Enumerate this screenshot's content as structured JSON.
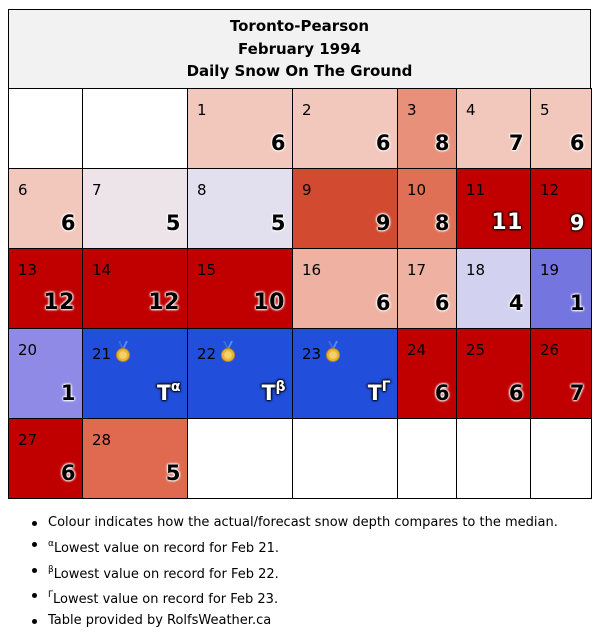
{
  "header": {
    "station": "Toronto-Pearson",
    "month": "February 1994",
    "subject": "Daily Snow On The Ground"
  },
  "legend_colors": {
    "much_above": "#c00000",
    "above": "#d24a30",
    "somewhat_above": "#e07055",
    "slightly_above": "#eaa288",
    "near_above": "#f2c8bc",
    "near_median": "#ece4e8",
    "slightly_below": "#e2e0ef",
    "below": "#d3d1f0",
    "more_below": "#8f8ae6",
    "much_below": "#7575e0",
    "record_low": "#214fdc"
  },
  "weeks": [
    [
      {
        "empty": true
      },
      {
        "empty": true
      },
      {
        "day": "1",
        "value": "6",
        "bg": "#f2c8bc"
      },
      {
        "day": "2",
        "value": "6",
        "bg": "#f2c8bc"
      },
      {
        "day": "3",
        "value": "8",
        "bg": "#e8907a"
      },
      {
        "day": "4",
        "value": "7",
        "bg": "#f2c8bc"
      },
      {
        "day": "5",
        "value": "6",
        "bg": "#f2c8bc"
      }
    ],
    [
      {
        "day": "6",
        "value": "6",
        "bg": "#f2c8bc"
      },
      {
        "day": "7",
        "value": "5",
        "bg": "#ece4e8"
      },
      {
        "day": "8",
        "value": "5",
        "bg": "#e2e0ef"
      },
      {
        "day": "9",
        "value": "9",
        "bg": "#d24a30"
      },
      {
        "day": "10",
        "value": "8",
        "bg": "#e07055"
      },
      {
        "day": "11",
        "value": "11",
        "bg": "#c00000",
        "dark": true
      },
      {
        "day": "12",
        "value": "9",
        "bg": "#c00000",
        "dark": true
      }
    ],
    [
      {
        "day": "13",
        "value": "12",
        "bg": "#c00000"
      },
      {
        "day": "14",
        "value": "12",
        "bg": "#c00000"
      },
      {
        "day": "15",
        "value": "10",
        "bg": "#c00000"
      },
      {
        "day": "16",
        "value": "6",
        "bg": "#efb2a2"
      },
      {
        "day": "17",
        "value": "6",
        "bg": "#efb2a2"
      },
      {
        "day": "18",
        "value": "4",
        "bg": "#d3d1f0"
      },
      {
        "day": "19",
        "value": "1",
        "bg": "#7575e0"
      }
    ],
    [
      {
        "day": "20",
        "value": "1",
        "bg": "#8f8ae6"
      },
      {
        "day": "21",
        "value": "T",
        "sup": "α",
        "bg": "#214fdc",
        "medal": true,
        "dark": true
      },
      {
        "day": "22",
        "value": "T",
        "sup": "β",
        "bg": "#214fdc",
        "medal": true,
        "dark": true
      },
      {
        "day": "23",
        "value": "T",
        "sup": "Γ",
        "bg": "#214fdc",
        "medal": true,
        "dark": true
      },
      {
        "day": "24",
        "value": "6",
        "bg": "#c00000"
      },
      {
        "day": "25",
        "value": "6",
        "bg": "#c00000"
      },
      {
        "day": "26",
        "value": "7",
        "bg": "#c00000"
      }
    ],
    [
      {
        "day": "27",
        "value": "6",
        "bg": "#c00000"
      },
      {
        "day": "28",
        "value": "5",
        "bg": "#e06a4f"
      },
      {
        "empty": true
      },
      {
        "empty": true
      },
      {
        "empty": true
      },
      {
        "empty": true
      },
      {
        "empty": true
      }
    ]
  ],
  "notes": [
    {
      "mark": "",
      "text": "Colour indicates how the actual/forecast snow depth compares to the median."
    },
    {
      "mark": "α",
      "text": "Lowest value on record for Feb 21."
    },
    {
      "mark": "β",
      "text": "Lowest value on record for Feb 22."
    },
    {
      "mark": "Γ",
      "text": "Lowest value on record for Feb 23."
    },
    {
      "mark": "",
      "text": "Table provided by RolfsWeather.ca"
    }
  ]
}
